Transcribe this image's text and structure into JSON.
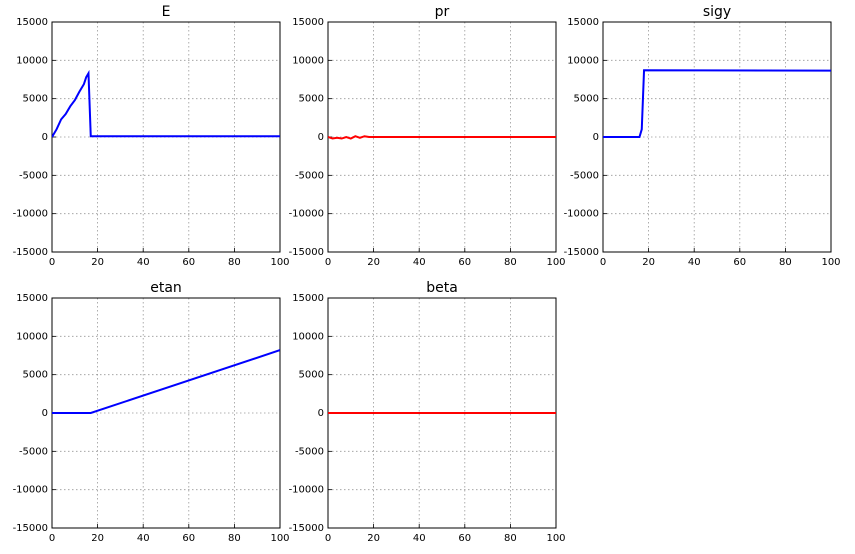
{
  "chart_data": [
    {
      "type": "line",
      "title": "E",
      "x": [
        0,
        2,
        4,
        6,
        8,
        10,
        12,
        14,
        15,
        16,
        17,
        18,
        100
      ],
      "values": [
        0,
        1000,
        2300,
        3000,
        4000,
        4800,
        5900,
        6900,
        7800,
        8300,
        100,
        100,
        100
      ],
      "color": "#0000ff",
      "xlim": [
        0,
        100
      ],
      "ylim": [
        -15000,
        15000
      ],
      "xticks": [
        0,
        20,
        40,
        60,
        80,
        100
      ],
      "yticks": [
        -15000,
        -10000,
        -5000,
        0,
        5000,
        10000,
        15000
      ],
      "grid": true
    },
    {
      "type": "line",
      "title": "pr",
      "x": [
        0,
        2,
        4,
        6,
        8,
        10,
        12,
        14,
        16,
        18,
        100
      ],
      "values": [
        0,
        -200,
        -100,
        -200,
        0,
        -200,
        100,
        -100,
        100,
        0,
        0
      ],
      "color": "#ff0000",
      "xlim": [
        0,
        100
      ],
      "ylim": [
        -15000,
        15000
      ],
      "xticks": [
        0,
        20,
        40,
        60,
        80,
        100
      ],
      "yticks": [
        -15000,
        -10000,
        -5000,
        0,
        5000,
        10000,
        15000
      ],
      "grid": true
    },
    {
      "type": "line",
      "title": "sigy",
      "x": [
        0,
        16,
        17,
        18,
        100
      ],
      "values": [
        0,
        0,
        1000,
        8700,
        8650
      ],
      "color": "#0000ff",
      "xlim": [
        0,
        100
      ],
      "ylim": [
        -15000,
        15000
      ],
      "xticks": [
        0,
        20,
        40,
        60,
        80,
        100
      ],
      "yticks": [
        -15000,
        -10000,
        -5000,
        0,
        5000,
        10000,
        15000
      ],
      "grid": true
    },
    {
      "type": "line",
      "title": "etan",
      "x": [
        0,
        17,
        100
      ],
      "values": [
        0,
        0,
        8200
      ],
      "color": "#0000ff",
      "xlim": [
        0,
        100
      ],
      "ylim": [
        -15000,
        15000
      ],
      "xticks": [
        0,
        20,
        40,
        60,
        80,
        100
      ],
      "yticks": [
        -15000,
        -10000,
        -5000,
        0,
        5000,
        10000,
        15000
      ],
      "grid": true
    },
    {
      "type": "line",
      "title": "beta",
      "x": [
        0,
        100
      ],
      "values": [
        0,
        0
      ],
      "color": "#ff0000",
      "xlim": [
        0,
        100
      ],
      "ylim": [
        -15000,
        15000
      ],
      "xticks": [
        0,
        20,
        40,
        60,
        80,
        100
      ],
      "yticks": [
        -15000,
        -10000,
        -5000,
        0,
        5000,
        10000,
        15000
      ],
      "grid": true
    }
  ]
}
